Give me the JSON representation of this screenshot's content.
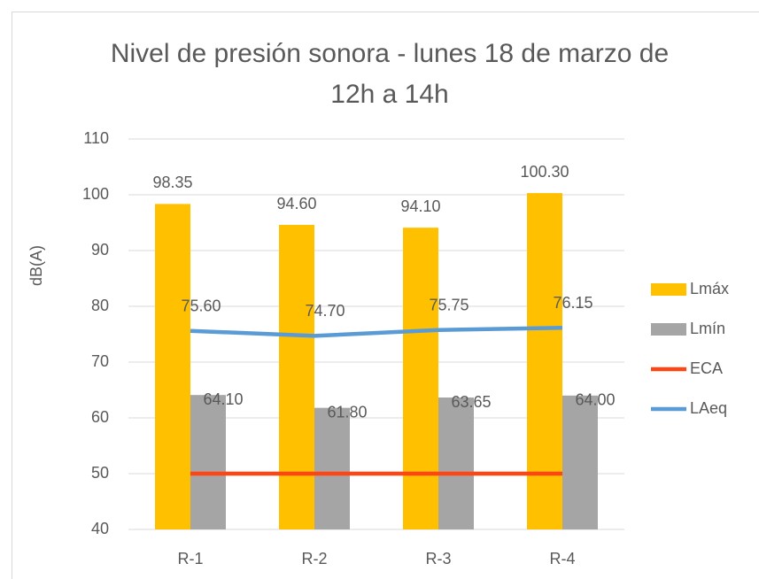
{
  "chart_data": {
    "type": "bar",
    "title": "Nivel de presión sonora - lunes 18 de marzo de 12h a 14h",
    "y_label": "dB(A)",
    "categories": [
      "R-1",
      "R-2",
      "R-3",
      "R-4"
    ],
    "series": [
      {
        "name": "Lmáx",
        "type": "bar",
        "color": "#ffc000",
        "values": [
          98.35,
          94.6,
          94.1,
          100.3
        ],
        "value_labels": [
          "98.35",
          "94.60",
          "94.10",
          "100.30"
        ]
      },
      {
        "name": "Lmín",
        "type": "bar",
        "color": "#a5a5a5",
        "values": [
          64.1,
          61.8,
          63.65,
          64.0
        ],
        "value_labels": [
          "64.10",
          "61.80",
          "63.65",
          "64.00"
        ]
      },
      {
        "name": "ECA",
        "type": "line",
        "color": "#ff4514",
        "values": [
          50,
          50,
          50,
          50
        ]
      },
      {
        "name": "LAeq",
        "type": "line",
        "color": "#5b9bd5",
        "values": [
          75.6,
          74.7,
          75.75,
          76.15
        ],
        "value_labels": [
          "75.60",
          "74.70",
          "75.75",
          "76.15"
        ]
      }
    ],
    "ylim": [
      40,
      110
    ],
    "yticks": [
      40,
      50,
      60,
      70,
      80,
      90,
      100,
      110
    ],
    "grid": true,
    "legend": "right"
  }
}
